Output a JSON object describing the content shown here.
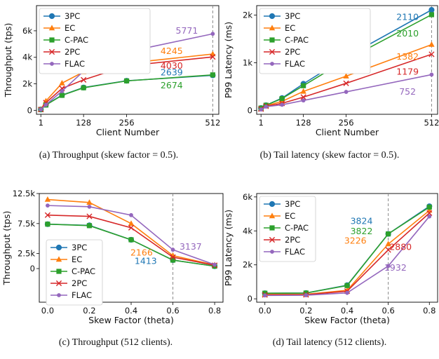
{
  "colors": {
    "3PC": "#1f77b4",
    "EC": "#ff7f0e",
    "C-PAC": "#2ca02c",
    "2PC": "#d62728",
    "FLAC": "#9467bd"
  },
  "chart_data": [
    {
      "type": "line",
      "caption": "(a)  Throughput (skew factor = 0.5).",
      "xlabel": "Client Number",
      "ylabel": "Throughput (tps)",
      "xlim": [
        -12,
        530
      ],
      "ylim": [
        -300,
        7900
      ],
      "xticks": [
        {
          "v": 1,
          "label": "1"
        },
        {
          "v": 128,
          "label": "128"
        },
        {
          "v": 256,
          "label": "256"
        },
        {
          "v": 512,
          "label": "512"
        }
      ],
      "yticks": [
        {
          "v": 0,
          "label": "0"
        },
        {
          "v": 2000,
          "label": "2k"
        },
        {
          "v": 4000,
          "label": "4k"
        },
        {
          "v": 6000,
          "label": "6k"
        }
      ],
      "vline": 512,
      "legend": "top-left",
      "x": [
        1,
        16,
        64,
        128,
        256,
        512
      ],
      "series": [
        {
          "name": "3PC",
          "marker": "circle",
          "values": [
            60,
            420,
            1150,
            1720,
            2230,
            2639
          ]
        },
        {
          "name": "EC",
          "marker": "triangle",
          "values": [
            60,
            700,
            2050,
            2900,
            3550,
            4245
          ]
        },
        {
          "name": "C-PAC",
          "marker": "square",
          "values": [
            60,
            400,
            1130,
            1700,
            2220,
            2674
          ]
        },
        {
          "name": "2PC",
          "marker": "x",
          "values": [
            60,
            580,
            1650,
            2300,
            3350,
            4030
          ]
        },
        {
          "name": "FLAC",
          "marker": "dot",
          "values": [
            60,
            420,
            1450,
            2950,
            4400,
            5771
          ]
        }
      ],
      "annotations": [
        {
          "text": "5771",
          "series": "FLAC",
          "x": 435,
          "y": 5771
        },
        {
          "text": "4245",
          "series": "EC",
          "x": 390,
          "y": 4245
        },
        {
          "text": "4030",
          "series": "2PC",
          "x": 390,
          "y": 3150
        },
        {
          "text": "2639",
          "series": "3PC",
          "x": 390,
          "y": 2639
        },
        {
          "text": "2674",
          "series": "C-PAC",
          "x": 390,
          "y": 1650
        }
      ]
    },
    {
      "type": "line",
      "caption": "(b)  Tail latency (skew factor = 0.5).",
      "xlabel": "Client Number",
      "ylabel": "P99 Latency (ms)",
      "xlim": [
        -12,
        530
      ],
      "ylim": [
        -80,
        2200
      ],
      "xticks": [
        {
          "v": 1,
          "label": "1"
        },
        {
          "v": 128,
          "label": "128"
        },
        {
          "v": 256,
          "label": "256"
        },
        {
          "v": 512,
          "label": "512"
        }
      ],
      "yticks": [
        {
          "v": 0,
          "label": "0"
        },
        {
          "v": 1000,
          "label": "1k"
        },
        {
          "v": 2000,
          "label": "2k"
        }
      ],
      "vline": 512,
      "legend": "top-left",
      "x": [
        1,
        16,
        64,
        128,
        256,
        512
      ],
      "series": [
        {
          "name": "3PC",
          "marker": "circle",
          "values": [
            50,
            110,
            260,
            560,
            1120,
            2110
          ]
        },
        {
          "name": "EC",
          "marker": "triangle",
          "values": [
            40,
            100,
            190,
            400,
            720,
            1382
          ]
        },
        {
          "name": "C-PAC",
          "marker": "square",
          "values": [
            50,
            110,
            250,
            520,
            1060,
            2010
          ]
        },
        {
          "name": "2PC",
          "marker": "x",
          "values": [
            30,
            90,
            150,
            280,
            570,
            1179
          ]
        },
        {
          "name": "FLAC",
          "marker": "dot",
          "values": [
            20,
            80,
            120,
            210,
            390,
            752
          ]
        }
      ],
      "annotations": [
        {
          "text": "2110",
          "series": "3PC",
          "x": 440,
          "y": 1900
        },
        {
          "text": "2010",
          "series": "C-PAC",
          "x": 440,
          "y": 1550
        },
        {
          "text": "1382",
          "series": "EC",
          "x": 440,
          "y": 1070
        },
        {
          "text": "1179",
          "series": "2PC",
          "x": 440,
          "y": 750
        },
        {
          "text": "752",
          "series": "FLAC",
          "x": 440,
          "y": 330
        }
      ]
    },
    {
      "type": "line",
      "caption": "(c)  Throughput (512 clients).",
      "xlabel": "Skew Factor (theta)",
      "ylabel": "Throughput (tps)",
      "xlim": [
        -0.04,
        0.84
      ],
      "ylim": [
        -5600,
        12500
      ],
      "xticks": [
        {
          "v": 0,
          "label": "0.0"
        },
        {
          "v": 0.2,
          "label": "0.2"
        },
        {
          "v": 0.4,
          "label": "0.4"
        },
        {
          "v": 0.6,
          "label": "0.6"
        },
        {
          "v": 0.8,
          "label": "0.8"
        }
      ],
      "yticks": [
        {
          "v": 0,
          "label": "0"
        },
        {
          "v": 2500,
          "label": "2.5k"
        },
        {
          "v": 7500,
          "label": "7.5k"
        },
        {
          "v": 12500,
          "label": "12.5k"
        }
      ],
      "vline": 0.6,
      "legend": "bottom-left",
      "x": [
        0,
        0.2,
        0.4,
        0.6,
        0.8
      ],
      "series": [
        {
          "name": "3PC",
          "marker": "circle",
          "values": [
            7400,
            7200,
            4800,
            1413,
            400
          ]
        },
        {
          "name": "EC",
          "marker": "triangle",
          "values": [
            11500,
            11000,
            7500,
            2166,
            600
          ]
        },
        {
          "name": "C-PAC",
          "marker": "square",
          "values": [
            7400,
            7150,
            4800,
            1413,
            400
          ]
        },
        {
          "name": "2PC",
          "marker": "x",
          "values": [
            8900,
            8700,
            6800,
            1900,
            550
          ]
        },
        {
          "name": "FLAC",
          "marker": "dot",
          "values": [
            10500,
            10300,
            8900,
            3137,
            650
          ]
        }
      ],
      "annotations": [
        {
          "text": "3137",
          "series": "FLAC",
          "x": 0.685,
          "y": 3137
        },
        {
          "text": "2166",
          "series": "EC",
          "x": 0.45,
          "y": 2166
        },
        {
          "text": "1413",
          "series": "3PC",
          "x": 0.47,
          "y": 750
        }
      ]
    },
    {
      "type": "line",
      "caption": "(d)  Tail latency (512 clients).",
      "xlabel": "Skew Factor (theta)",
      "ylabel": "P99 Latency (ms)",
      "xlim": [
        -0.04,
        0.84
      ],
      "ylim": [
        -200,
        6200
      ],
      "xticks": [
        {
          "v": 0,
          "label": "0.0"
        },
        {
          "v": 0.2,
          "label": "0.2"
        },
        {
          "v": 0.4,
          "label": "0.4"
        },
        {
          "v": 0.6,
          "label": "0.6"
        },
        {
          "v": 0.8,
          "label": "0.8"
        }
      ],
      "yticks": [
        {
          "v": 0,
          "label": "0"
        },
        {
          "v": 2000,
          "label": "2k"
        },
        {
          "v": 4000,
          "label": "4k"
        },
        {
          "v": 6000,
          "label": "6k"
        }
      ],
      "vline": 0.6,
      "legend": "top-left",
      "x": [
        0,
        0.2,
        0.4,
        0.6,
        0.8
      ],
      "series": [
        {
          "name": "3PC",
          "marker": "circle",
          "values": [
            330,
            340,
            800,
            3824,
            5450
          ]
        },
        {
          "name": "EC",
          "marker": "triangle",
          "values": [
            260,
            270,
            500,
            3226,
            5200
          ]
        },
        {
          "name": "C-PAC",
          "marker": "square",
          "values": [
            330,
            340,
            780,
            3822,
            5400
          ]
        },
        {
          "name": "2PC",
          "marker": "x",
          "values": [
            230,
            240,
            450,
            2880,
            5050
          ]
        },
        {
          "name": "FLAC",
          "marker": "dot",
          "values": [
            200,
            210,
            350,
            1932,
            4850
          ]
        }
      ],
      "annotations": [
        {
          "text": "3824",
          "series": "3PC",
          "x": 0.47,
          "y": 4400
        },
        {
          "text": "3822",
          "series": "C-PAC",
          "x": 0.47,
          "y": 3800
        },
        {
          "text": "3226",
          "series": "EC",
          "x": 0.44,
          "y": 3250
        },
        {
          "text": "2880",
          "series": "2PC",
          "x": 0.66,
          "y": 2880
        },
        {
          "text": "1932",
          "series": "FLAC",
          "x": 0.635,
          "y": 1650
        }
      ]
    }
  ]
}
